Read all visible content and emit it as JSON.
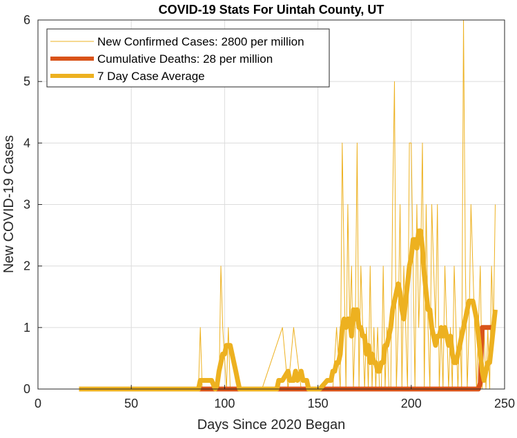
{
  "chart_data": {
    "type": "line",
    "title": "COVID-19 Stats For Uintah County, UT",
    "xlabel": "Days Since 2020 Began",
    "ylabel": "New COVID-19 Cases",
    "xlim": [
      0,
      250
    ],
    "ylim": [
      0,
      6
    ],
    "xticks": [
      0,
      50,
      100,
      150,
      200,
      250
    ],
    "yticks": [
      0,
      1,
      2,
      3,
      4,
      5,
      6
    ],
    "grid": true,
    "legend_position": "top-left",
    "series": [
      {
        "name": "New Confirmed Cases: 2800 per million",
        "color": "#EDB120",
        "style": "thin",
        "x": [
          22,
          86,
          87,
          88,
          97,
          98,
          99,
          101,
          102,
          103,
          104,
          120,
          131,
          134,
          137,
          141,
          147,
          158,
          160,
          162,
          163,
          164,
          165,
          166,
          167,
          168,
          169,
          170,
          171,
          172,
          173,
          174,
          175,
          176,
          177,
          178,
          179,
          180,
          181,
          182,
          183,
          184,
          185,
          186,
          187,
          188,
          189,
          190,
          191,
          192,
          193,
          194,
          195,
          196,
          197,
          198,
          199,
          200,
          201,
          202,
          203,
          204,
          205,
          206,
          207,
          208,
          209,
          210,
          211,
          212,
          213,
          214,
          215,
          216,
          217,
          218,
          219,
          220,
          221,
          222,
          223,
          224,
          225,
          226,
          227,
          228,
          229,
          230,
          231,
          232,
          233,
          234,
          235,
          236,
          237,
          238,
          239,
          240,
          241,
          242,
          243,
          244,
          245
        ],
        "y": [
          0,
          0,
          1,
          0,
          0,
          2,
          1,
          0,
          1,
          0,
          0,
          0,
          1,
          0,
          1,
          0,
          0,
          0,
          1,
          0,
          4,
          2,
          0,
          3,
          1,
          2,
          0,
          1,
          4,
          0,
          2,
          1,
          0,
          1,
          0,
          2,
          0,
          1,
          0,
          1,
          0,
          0,
          2,
          0,
          1,
          0,
          0,
          3,
          5,
          0,
          1,
          3,
          0,
          2,
          1,
          0,
          4,
          4,
          2,
          0,
          3,
          1,
          2,
          4,
          0,
          3,
          1,
          0,
          3,
          2,
          1,
          3,
          0,
          1,
          0,
          2,
          1,
          0,
          1,
          0,
          2,
          1,
          0,
          1,
          0,
          6,
          2,
          0,
          1,
          3,
          2,
          1,
          0,
          1,
          2,
          0,
          1,
          0,
          1,
          0,
          2,
          1,
          3
        ]
      },
      {
        "name": "Cumulative Deaths: 28 per million",
        "color": "#D95319",
        "style": "thick",
        "x": [
          22,
          236,
          237,
          238,
          239,
          244
        ],
        "y": [
          0,
          0,
          0.1,
          1,
          1,
          1
        ]
      },
      {
        "name": "7 Day Case Average",
        "color": "#EDB120",
        "style": "thick",
        "x": [
          22,
          86,
          87,
          88,
          93,
          94,
          95,
          96,
          97,
          98,
          99,
          100,
          101,
          103,
          104,
          105,
          106,
          107,
          108,
          109,
          110,
          120,
          128,
          129,
          131,
          134,
          135,
          137,
          138,
          139,
          141,
          142,
          144,
          145,
          147,
          149,
          151,
          155,
          157,
          158,
          159,
          160,
          161,
          162,
          163,
          164,
          165,
          166,
          167,
          168,
          169,
          170,
          171,
          172,
          173,
          174,
          175,
          176,
          177,
          178,
          179,
          180,
          181,
          182,
          183,
          184,
          185,
          186,
          187,
          188,
          189,
          190,
          191,
          192,
          193,
          194,
          195,
          196,
          197,
          198,
          199,
          200,
          201,
          202,
          203,
          204,
          205,
          206,
          207,
          208,
          209,
          210,
          211,
          212,
          213,
          214,
          215,
          216,
          217,
          218,
          219,
          220,
          221,
          222,
          223,
          224,
          225,
          226,
          227,
          228,
          229,
          230,
          231,
          232,
          233,
          234,
          235,
          236,
          237,
          238,
          239,
          240,
          241,
          242,
          243,
          244,
          245
        ],
        "y": [
          0,
          0,
          0.14,
          0.14,
          0.14,
          0.07,
          0,
          0.07,
          0.29,
          0.43,
          0.57,
          0.57,
          0.71,
          0.71,
          0.57,
          0.43,
          0.29,
          0.14,
          0,
          0,
          0,
          0,
          0,
          0.14,
          0.14,
          0.29,
          0.14,
          0.14,
          0.29,
          0.14,
          0.29,
          0.14,
          0.14,
          0,
          0,
          0,
          0,
          0.14,
          0.14,
          0.29,
          0.29,
          0.43,
          0.43,
          0.57,
          1.0,
          1.14,
          1.0,
          1.14,
          1.14,
          0.86,
          1.29,
          1.14,
          1.29,
          1.0,
          1.0,
          0.86,
          0.86,
          0.57,
          0.71,
          0.43,
          0.57,
          0.43,
          0.43,
          0.29,
          0.29,
          0.43,
          0.43,
          0.71,
          0.71,
          0.86,
          1.0,
          1.29,
          1.43,
          1.57,
          1.71,
          1.57,
          1.29,
          1.14,
          1.43,
          1.71,
          2.0,
          2.14,
          2.43,
          2.43,
          2.29,
          2.57,
          2.57,
          2.29,
          1.86,
          1.57,
          1.29,
          1.29,
          1.0,
          0.86,
          0.71,
          0.86,
          0.86,
          1.0,
          0.86,
          1.0,
          0.86,
          0.71,
          0.86,
          0.57,
          0.43,
          0.43,
          0.57,
          0.71,
          0.86,
          1.0,
          1.14,
          1.29,
          1.43,
          1.43,
          1.43,
          1.29,
          1.14,
          0.86,
          0.57,
          0.29,
          0.14,
          0.29,
          0.43,
          0.43,
          0.71,
          1.0,
          1.29
        ]
      }
    ]
  }
}
